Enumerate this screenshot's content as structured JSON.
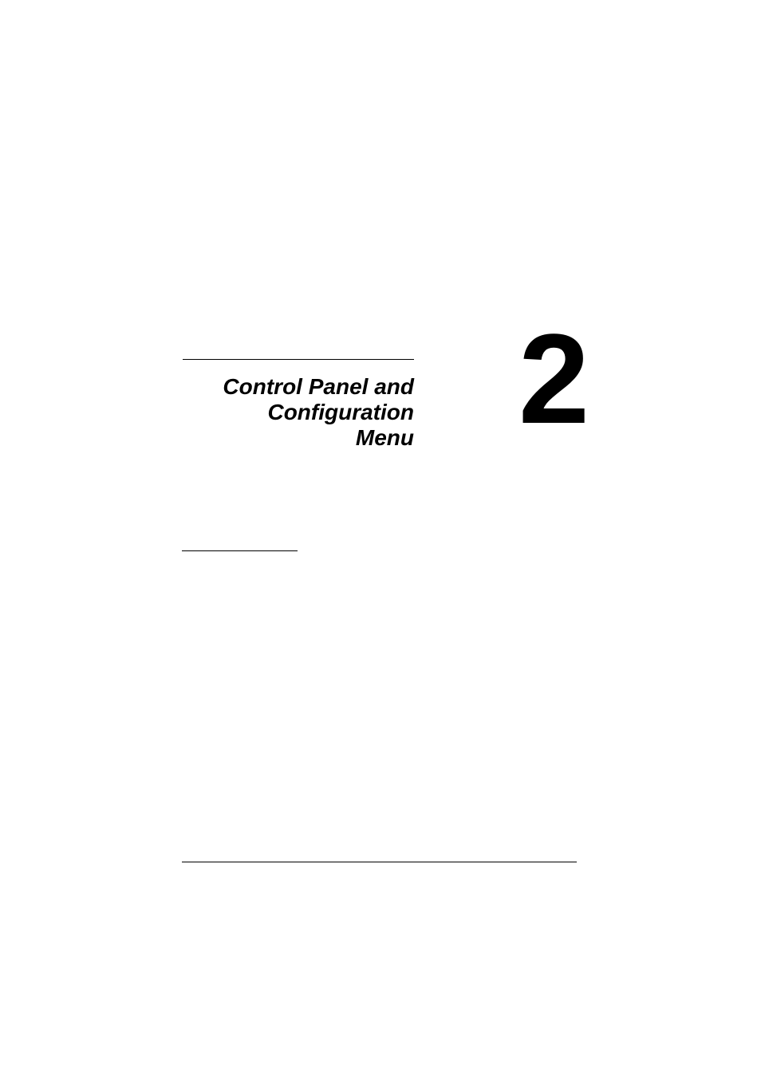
{
  "page": {
    "chapter_number": "2",
    "chapter_title_line1": "Control Panel and",
    "chapter_title_line2": "Configuration",
    "chapter_title_line3": "Menu",
    "background_color": "#ffffff",
    "text_color": "#000000",
    "rule_color": "#000000",
    "chapter_number_fontsize": 160,
    "chapter_number_fontweight": 900,
    "title_fontsize": 28,
    "title_fontweight": "bold",
    "title_fontstyle": "italic"
  }
}
